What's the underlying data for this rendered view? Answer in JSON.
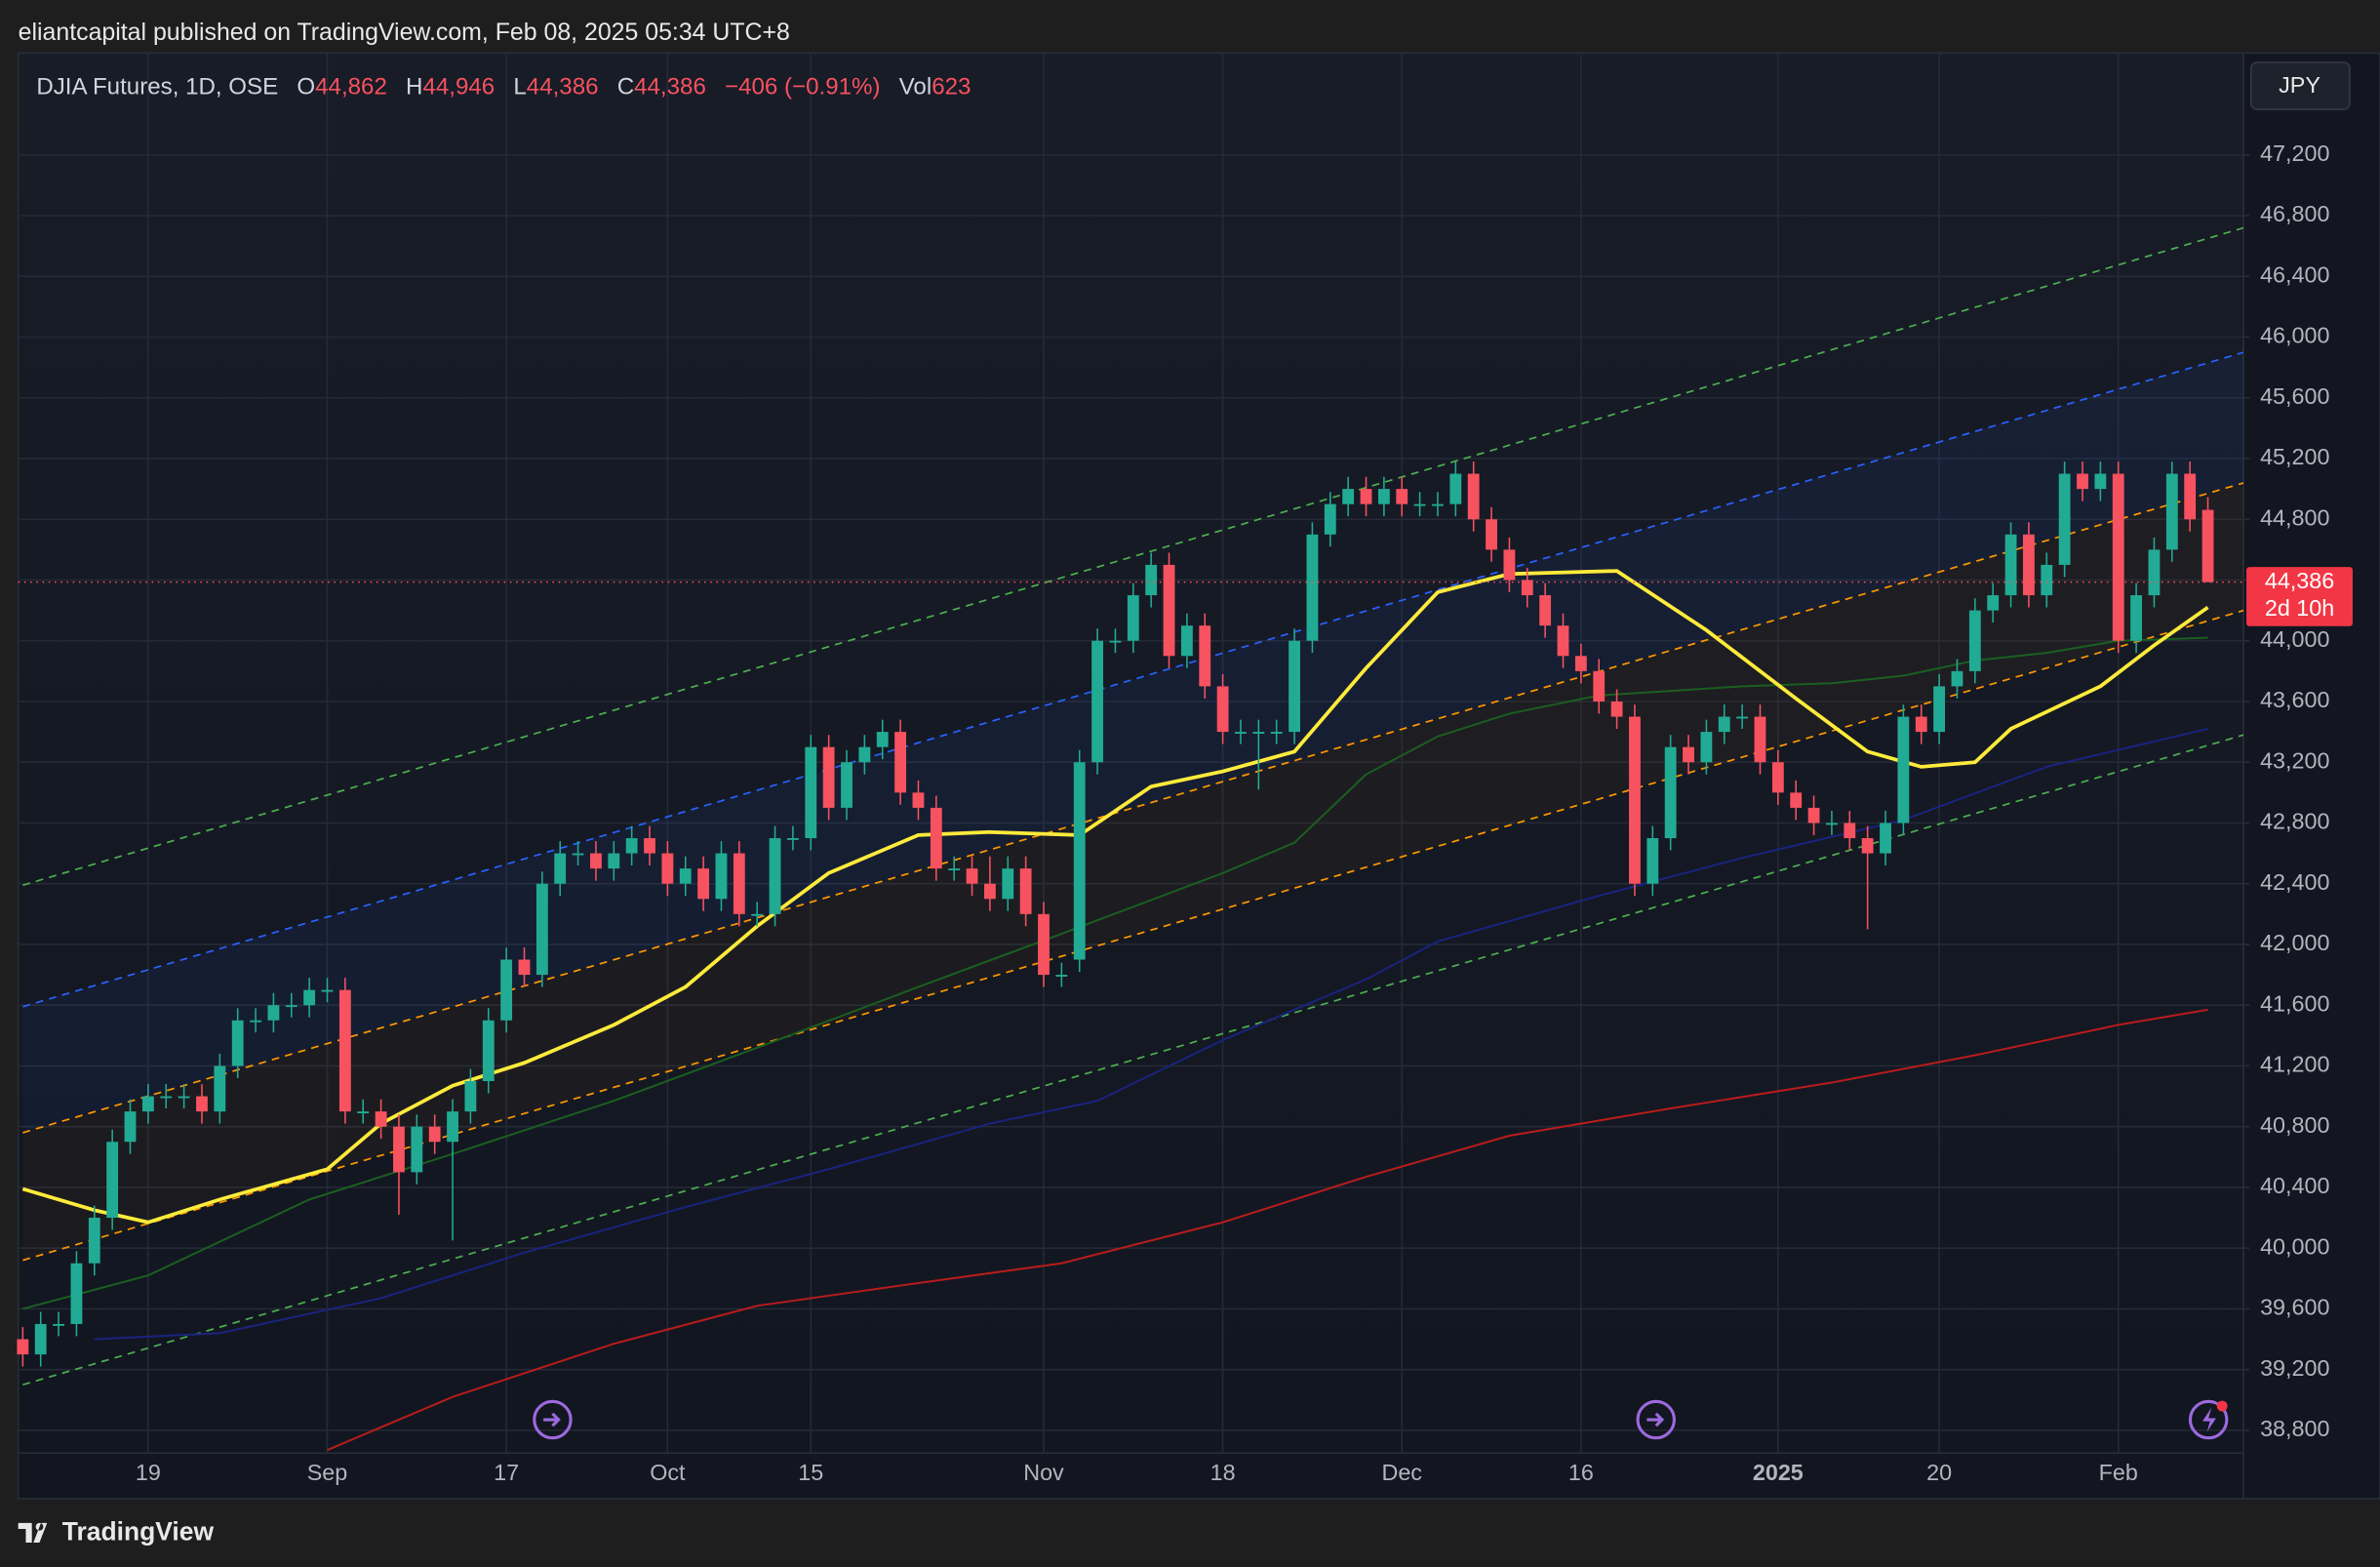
{
  "header": "eliantcapital published on TradingView.com, Feb 08, 2025 05:34 UTC+8",
  "legend": {
    "symbol": "DJIA Futures, 1D, OSE",
    "fields": [
      {
        "key": "O",
        "value": "44,862"
      },
      {
        "key": "H",
        "value": "44,946"
      },
      {
        "key": "L",
        "value": "44,386"
      },
      {
        "key": "C",
        "value": "44,386"
      }
    ],
    "change": "−406 (−0.91%)",
    "volume_key": "Vol",
    "volume": "623"
  },
  "currency": "JPY",
  "last_price_label": "44,386",
  "countdown": "2d 10h",
  "footer": "TradingView",
  "chart_data": {
    "type": "candlestick",
    "up_color": "#22ab94",
    "down_color": "#f7525f",
    "grid": true,
    "ylim": [
      38650,
      47870
    ],
    "yticks": [
      {
        "value": 38800,
        "label": "38,800"
      },
      {
        "value": 39200,
        "label": "39,200"
      },
      {
        "value": 39600,
        "label": "39,600"
      },
      {
        "value": 40000,
        "label": "40,000"
      },
      {
        "value": 40400,
        "label": "40,400"
      },
      {
        "value": 40800,
        "label": "40,800"
      },
      {
        "value": 41200,
        "label": "41,200"
      },
      {
        "value": 41600,
        "label": "41,600"
      },
      {
        "value": 42000,
        "label": "42,000"
      },
      {
        "value": 42400,
        "label": "42,400"
      },
      {
        "value": 42800,
        "label": "42,800"
      },
      {
        "value": 43200,
        "label": "43,200"
      },
      {
        "value": 43600,
        "label": "43,600"
      },
      {
        "value": 44000,
        "label": "44,000"
      },
      {
        "value": 44400,
        "label": "44,400"
      },
      {
        "value": 44800,
        "label": "44,800"
      },
      {
        "value": 45200,
        "label": "45,200"
      },
      {
        "value": 45600,
        "label": "45,600"
      },
      {
        "value": 46000,
        "label": "46,000"
      },
      {
        "value": 46400,
        "label": "46,400"
      },
      {
        "value": 46800,
        "label": "46,800"
      },
      {
        "value": 47200,
        "label": "47,200"
      }
    ],
    "categories": [
      null,
      null,
      null,
      null,
      null,
      null,
      null,
      "19",
      null,
      null,
      null,
      null,
      null,
      null,
      null,
      null,
      null,
      "Sep",
      null,
      null,
      null,
      null,
      null,
      null,
      null,
      null,
      null,
      "17",
      null,
      null,
      null,
      null,
      null,
      null,
      null,
      null,
      "Oct",
      null,
      null,
      null,
      null,
      null,
      null,
      null,
      "15",
      null,
      null,
      null,
      null,
      null,
      null,
      null,
      null,
      null,
      null,
      null,
      null,
      "Nov",
      null,
      null,
      null,
      null,
      null,
      null,
      null,
      null,
      null,
      "18",
      null,
      null,
      null,
      null,
      null,
      null,
      null,
      null,
      null,
      "Dec",
      null,
      null,
      null,
      null,
      null,
      null,
      null,
      null,
      null,
      "16",
      null,
      null,
      null,
      null,
      null,
      null,
      null,
      null,
      null,
      null,
      "2025",
      null,
      null,
      null,
      null,
      null,
      null,
      null,
      null,
      "20",
      null,
      null,
      null,
      null,
      null,
      null,
      null,
      null,
      null,
      "Feb",
      null,
      null,
      null,
      null,
      null
    ],
    "open": [
      39400,
      39300,
      39500,
      39500,
      39900,
      40200,
      40700,
      40900,
      41000,
      41000,
      41000,
      40900,
      41200,
      41500,
      41500,
      41600,
      41600,
      41700,
      41700,
      40900,
      40900,
      40800,
      40500,
      40800,
      40700,
      40900,
      41100,
      41500,
      41900,
      41800,
      42400,
      42600,
      42600,
      42500,
      42600,
      42700,
      42600,
      42400,
      42500,
      42300,
      42600,
      42200,
      42200,
      42700,
      42700,
      43300,
      42900,
      43200,
      43300,
      43400,
      43000,
      42900,
      42500,
      42500,
      42400,
      42300,
      42500,
      42200,
      41800,
      41900,
      43200,
      44000,
      44000,
      44300,
      44500,
      43900,
      44100,
      43700,
      43400,
      43400,
      43400,
      43400,
      44000,
      44700,
      44900,
      45000,
      44900,
      45000,
      44900,
      44900,
      44900,
      45100,
      44800,
      44600,
      44400,
      44300,
      44100,
      43900,
      43800,
      43600,
      43500,
      42400,
      42700,
      43300,
      43200,
      43400,
      43500,
      43500,
      43200,
      43000,
      42900,
      42800,
      42800,
      42700,
      42600,
      42800,
      43500,
      43400,
      43700,
      43800,
      44200,
      44300,
      44700,
      44300,
      44500,
      45100,
      45000,
      45100,
      44000,
      44300,
      44600,
      45100,
      44862
    ],
    "high": [
      39480,
      39580,
      39580,
      39980,
      40280,
      40780,
      40980,
      41080,
      41080,
      41080,
      41080,
      41280,
      41580,
      41580,
      41680,
      41680,
      41780,
      41780,
      41780,
      40980,
      40980,
      40880,
      40880,
      40880,
      40980,
      41180,
      41580,
      41980,
      41980,
      42480,
      42680,
      42680,
      42680,
      42680,
      42780,
      42780,
      42680,
      42580,
      42580,
      42680,
      42680,
      42280,
      42780,
      42780,
      43380,
      43380,
      43280,
      43380,
      43480,
      43480,
      43080,
      42980,
      42580,
      42580,
      42580,
      42580,
      42580,
      42280,
      41880,
      43280,
      44080,
      44080,
      44380,
      44580,
      44580,
      44180,
      44180,
      43780,
      43480,
      43480,
      43480,
      44080,
      44780,
      44980,
      45080,
      45080,
      45080,
      45080,
      44980,
      44980,
      45180,
      45180,
      44880,
      44680,
      44480,
      44380,
      44180,
      43980,
      43880,
      43680,
      43580,
      42780,
      43380,
      43380,
      43480,
      43580,
      43580,
      43580,
      43280,
      43080,
      42980,
      42880,
      42880,
      42780,
      42880,
      43580,
      43580,
      43780,
      43880,
      44280,
      44380,
      44780,
      44780,
      44580,
      45180,
      45180,
      45180,
      45180,
      44380,
      44680,
      45180,
      45180,
      44946
    ],
    "low": [
      39220,
      39220,
      39420,
      39420,
      39820,
      40120,
      40620,
      40820,
      40920,
      40920,
      40820,
      40820,
      41120,
      41420,
      41420,
      41520,
      41520,
      41620,
      40820,
      40820,
      40720,
      40220,
      40420,
      40620,
      40050,
      40820,
      41020,
      41420,
      41720,
      41720,
      42320,
      42520,
      42420,
      42420,
      42520,
      42520,
      42320,
      42320,
      42220,
      42220,
      42120,
      42120,
      42120,
      42620,
      42620,
      42820,
      42820,
      43120,
      43220,
      42920,
      42820,
      42420,
      42420,
      42320,
      42220,
      42220,
      42120,
      41720,
      41720,
      41820,
      43120,
      43920,
      43920,
      44220,
      43820,
      43820,
      43620,
      43320,
      43320,
      43020,
      43320,
      43320,
      43920,
      44620,
      44820,
      44820,
      44820,
      44820,
      44820,
      44820,
      44820,
      44720,
      44520,
      44320,
      44220,
      44020,
      43820,
      43720,
      43520,
      43420,
      42320,
      42320,
      42620,
      43120,
      43120,
      43320,
      43420,
      43120,
      42920,
      42820,
      42720,
      42720,
      42620,
      42100,
      42520,
      42720,
      43320,
      43320,
      43620,
      43720,
      44120,
      44220,
      44220,
      44220,
      44420,
      44920,
      44920,
      43920,
      43920,
      44220,
      44520,
      44720,
      44386
    ],
    "close": [
      39300,
      39500,
      39500,
      39900,
      40200,
      40700,
      40900,
      41000,
      41000,
      41000,
      40900,
      41200,
      41500,
      41500,
      41600,
      41600,
      41700,
      41700,
      40900,
      40900,
      40800,
      40500,
      40800,
      40700,
      40900,
      41100,
      41500,
      41900,
      41800,
      42400,
      42600,
      42600,
      42500,
      42600,
      42700,
      42600,
      42400,
      42500,
      42300,
      42600,
      42200,
      42200,
      42700,
      42700,
      43300,
      42900,
      43200,
      43300,
      43400,
      43000,
      42900,
      42500,
      42500,
      42400,
      42300,
      42500,
      42200,
      41800,
      41800,
      43200,
      44000,
      44000,
      44300,
      44500,
      43900,
      44100,
      43700,
      43400,
      43400,
      43400,
      43400,
      44000,
      44700,
      44900,
      45000,
      44900,
      45000,
      44900,
      44900,
      44900,
      45100,
      44800,
      44600,
      44400,
      44300,
      44100,
      43900,
      43800,
      43600,
      43500,
      42400,
      42700,
      43300,
      43200,
      43400,
      43500,
      43500,
      43200,
      43000,
      42900,
      42800,
      42800,
      42700,
      42600,
      42800,
      43500,
      43400,
      43700,
      43800,
      44200,
      44300,
      44700,
      44300,
      44500,
      45100,
      45000,
      45100,
      44000,
      44300,
      44600,
      45100,
      44800,
      44386
    ],
    "overlays": [
      {
        "color": "#4caf50",
        "dashed": true,
        "x": [
          0,
          124
        ],
        "values": [
          42390,
          46720
        ]
      },
      {
        "color": "#2962ff",
        "dashed": true,
        "x": [
          0,
          124
        ],
        "values": [
          41590,
          45900
        ]
      },
      {
        "color": "#ff9800",
        "dashed": true,
        "x": [
          0,
          124
        ],
        "values": [
          40760,
          45040
        ]
      },
      {
        "color": "#ff9800",
        "dashed": true,
        "x": [
          0,
          124
        ],
        "values": [
          39920,
          44200
        ]
      },
      {
        "color": "#4caf50",
        "dashed": true,
        "x": [
          0,
          124
        ],
        "values": [
          39100,
          43380
        ]
      },
      {
        "color": "#b71c1c",
        "dashed": false,
        "x": [
          17,
          24,
          33,
          41,
          50,
          58,
          67,
          75,
          83,
          92,
          101,
          109,
          117,
          122
        ],
        "values": [
          38670,
          39020,
          39370,
          39620,
          39770,
          39900,
          40170,
          40470,
          40740,
          40920,
          41090,
          41270,
          41470,
          41570
        ]
      },
      {
        "color": "#1a237e",
        "dashed": false,
        "x": [
          4,
          11,
          20,
          28,
          37,
          45,
          54,
          60,
          67,
          75,
          79,
          88,
          96,
          105,
          113,
          122
        ],
        "values": [
          39400,
          39440,
          39670,
          39970,
          40270,
          40520,
          40820,
          40970,
          41370,
          41770,
          42020,
          42320,
          42570,
          42820,
          43170,
          43420
        ]
      },
      {
        "color": "#1b5e20",
        "dashed": false,
        "x": [
          0,
          7,
          16,
          24,
          33,
          41,
          50,
          58,
          67,
          71,
          75,
          79,
          83,
          88,
          92,
          96,
          101,
          105,
          109,
          113,
          117,
          122
        ],
        "values": [
          39600,
          39820,
          40320,
          40620,
          40970,
          41320,
          41720,
          42070,
          42470,
          42670,
          43120,
          43370,
          43520,
          43640,
          43670,
          43700,
          43720,
          43770,
          43870,
          43920,
          44000,
          44020
        ]
      },
      {
        "color": "#ffeb3b",
        "dashed": false,
        "width": 2.4,
        "x": [
          0,
          4,
          7,
          11,
          17,
          20,
          24,
          28,
          33,
          37,
          41,
          45,
          50,
          54,
          59,
          63,
          67,
          71,
          75,
          79,
          83,
          89,
          94,
          99,
          103,
          106,
          109,
          111,
          116,
          119,
          122
        ],
        "values": [
          40390,
          40250,
          40170,
          40320,
          40520,
          40820,
          41070,
          41220,
          41470,
          41720,
          42120,
          42470,
          42720,
          42740,
          42720,
          43040,
          43140,
          43270,
          43820,
          44320,
          44440,
          44460,
          44070,
          43620,
          43270,
          43170,
          43200,
          43420,
          43700,
          43970,
          44220
        ]
      }
    ]
  }
}
